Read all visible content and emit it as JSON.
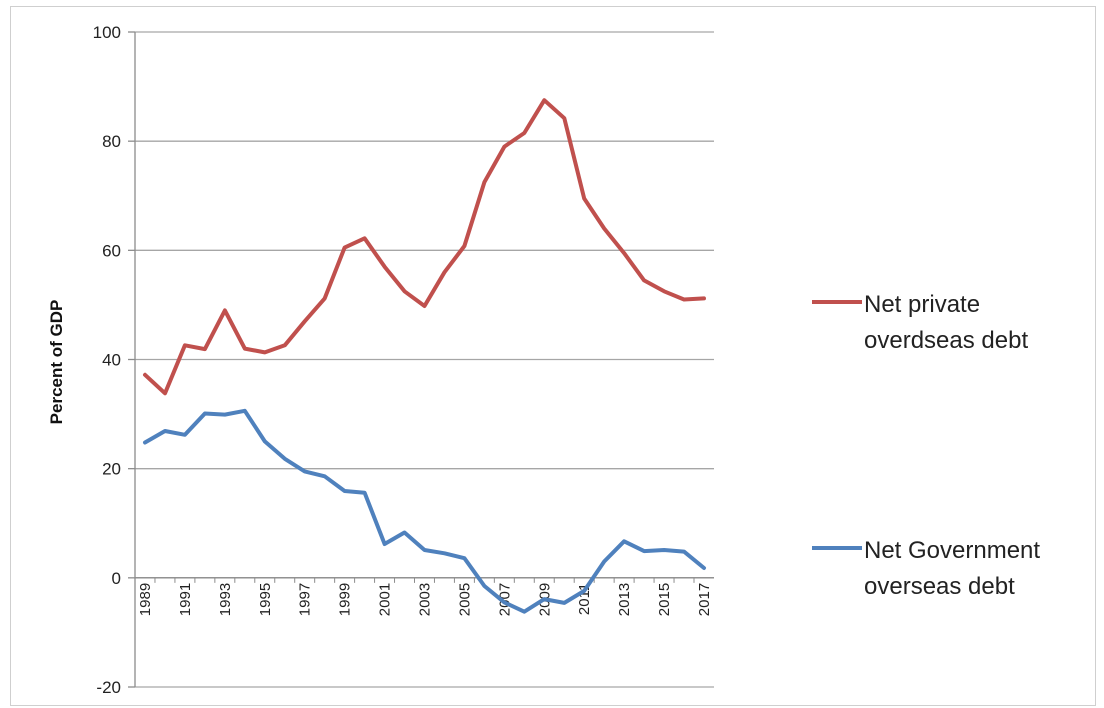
{
  "chart_data": {
    "type": "line",
    "title": "",
    "xlabel": "",
    "ylabel": "Percent of GDP",
    "ylim": [
      -20,
      100
    ],
    "yticks": [
      -20,
      0,
      20,
      40,
      60,
      80,
      100
    ],
    "x": [
      1989,
      1990,
      1991,
      1992,
      1993,
      1994,
      1995,
      1996,
      1997,
      1998,
      1999,
      2000,
      2001,
      2002,
      2003,
      2004,
      2005,
      2006,
      2007,
      2008,
      2009,
      2010,
      2011,
      2012,
      2013,
      2014,
      2015,
      2016,
      2017
    ],
    "xtick_labels": [
      "1989",
      "1991",
      "1993",
      "1995",
      "1997",
      "1999",
      "2001",
      "2003",
      "2005",
      "2007",
      "2009",
      "2011",
      "2013",
      "2015",
      "2017"
    ],
    "grid": true,
    "legend_position": "right",
    "series": [
      {
        "name_lines": [
          "Net private",
          "overdseas debt"
        ],
        "color": "#C0504D",
        "values": [
          37.2,
          33.8,
          42.6,
          41.9,
          49.0,
          42.0,
          41.3,
          42.6,
          47.0,
          51.2,
          60.5,
          62.2,
          57.0,
          52.5,
          49.8,
          56.0,
          60.8,
          72.5,
          79.0,
          81.5,
          87.5,
          84.2,
          69.5,
          64.0,
          59.5,
          54.5,
          52.5,
          51.0,
          51.2
        ]
      },
      {
        "name_lines": [
          "Net Government",
          "overseas debt"
        ],
        "color": "#4F81BD",
        "values": [
          24.8,
          26.9,
          26.2,
          30.1,
          29.9,
          30.6,
          25.0,
          21.8,
          19.5,
          18.6,
          15.9,
          15.6,
          6.2,
          8.3,
          5.1,
          4.5,
          3.6,
          -1.5,
          -4.5,
          -6.2,
          -3.9,
          -4.6,
          -2.4,
          3.0,
          6.7,
          4.9,
          5.1,
          4.8,
          1.8
        ]
      }
    ]
  }
}
